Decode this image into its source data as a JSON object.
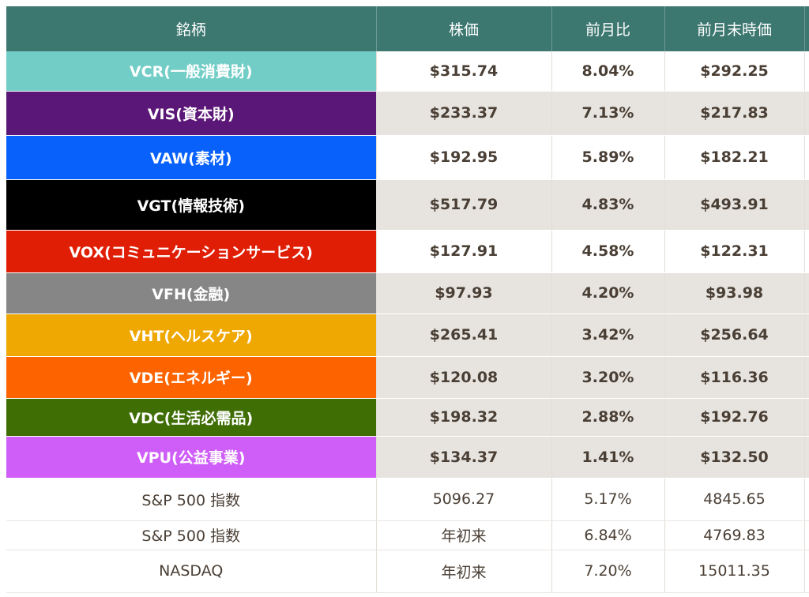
{
  "header": {
    "name": "銘柄",
    "price": "株価",
    "change": "前月比",
    "prev_price": "前月末時価"
  },
  "rows": [
    {
      "name": "VCR(一般消費財)",
      "price": "$315.74",
      "change": "8.04%",
      "prev": "$292.25",
      "color": "#72cdc6"
    },
    {
      "name": "VIS(資本財)",
      "price": "$233.37",
      "change": "7.13%",
      "prev": "$217.83",
      "color": "#5b1777"
    },
    {
      "name": "VAW(素材)",
      "price": "$192.95",
      "change": "5.89%",
      "prev": "$182.21",
      "color": "#0861fb"
    },
    {
      "name": "VGT(情報技術)",
      "price": "$517.79",
      "change": "4.83%",
      "prev": "$493.91",
      "color": "#000000"
    },
    {
      "name": "VOX(コミュニケーションサービス)",
      "price": "$127.91",
      "change": "4.58%",
      "prev": "$122.31",
      "color": "#e01e05"
    },
    {
      "name": "VFH(金融)",
      "price": "$97.93",
      "change": "4.20%",
      "prev": "$93.98",
      "color": "#868686"
    },
    {
      "name": "VHT(ヘルスケア)",
      "price": "$265.41",
      "change": "3.42%",
      "prev": "$256.64",
      "color": "#efa701"
    },
    {
      "name": "VDE(エネルギー)",
      "price": "$120.08",
      "change": "3.20%",
      "prev": "$116.36",
      "color": "#fd6400"
    },
    {
      "name": "VDC(生活必需品)",
      "price": "$198.32",
      "change": "2.88%",
      "prev": "$192.76",
      "color": "#3f6e05"
    },
    {
      "name": "VPU(公益事業)",
      "price": "$134.37",
      "change": "1.41%",
      "prev": "$132.50",
      "color": "#cf5ef8"
    }
  ],
  "index_rows": [
    {
      "name": "S&P 500 指数",
      "price": "5096.27",
      "change": "5.17%",
      "prev": "4845.65"
    },
    {
      "name": "S&P 500 指数",
      "price": "年初来",
      "change": "6.84%",
      "prev": "4769.83"
    },
    {
      "name": "NASDAQ",
      "price": "年初来",
      "change": "7.20%",
      "prev": "15011.35"
    }
  ]
}
